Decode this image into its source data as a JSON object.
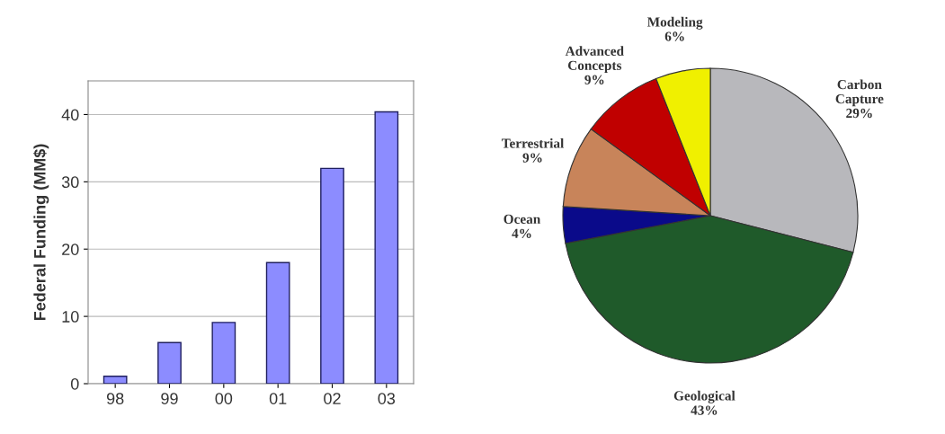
{
  "chart_data": [
    {
      "type": "bar",
      "ylabel": "Federal Funding (MM$)",
      "categories": [
        "98",
        "99",
        "00",
        "01",
        "02",
        "03"
      ],
      "values": [
        1.1,
        6.1,
        9.1,
        18.0,
        32.0,
        40.4
      ],
      "color": "#8c8cff",
      "ylim": [
        0,
        45
      ],
      "yticks": [
        0,
        10,
        20,
        30,
        40
      ],
      "grid": "y"
    },
    {
      "type": "pie",
      "categories": [
        "Carbon\nCapture",
        "Geological",
        "Ocean",
        "Terrestrial",
        "Advanced\nConcepts",
        "Modeling"
      ],
      "values": [
        29,
        43,
        4,
        9,
        9,
        6
      ],
      "colors": [
        "#b8b8bc",
        "#1f5a2a",
        "#0a0a8a",
        "#c8845a",
        "#c00000",
        "#f0f000"
      ],
      "value_labels": [
        "29%",
        "43%",
        "4%",
        "9%",
        "9%",
        "6%"
      ]
    }
  ]
}
